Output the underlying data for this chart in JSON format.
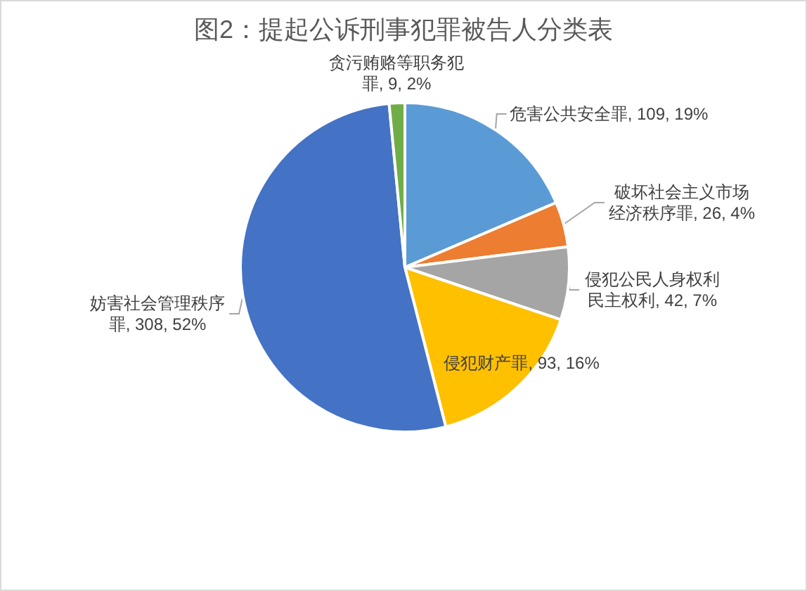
{
  "chart_data": {
    "type": "pie",
    "title": "图2：提起公诉刑事犯罪被告人分类表",
    "categories": [
      "危害公共安全罪",
      "破坏社会主义市场经济秩序罪",
      "侵犯公民人身权利民主权利",
      "侵犯财产罪",
      "妨害社会管理秩序罪",
      "贪污贿赂等职务犯罪"
    ],
    "values": [
      109,
      26,
      42,
      93,
      308,
      9
    ],
    "colors": [
      "#5b9bd5",
      "#ed7d31",
      "#a5a5a5",
      "#ffc000",
      "#4472c4",
      "#70ad47"
    ],
    "value_labels": [
      "109, 19%",
      "26, 4%",
      "42, 7%",
      "93, 16%",
      "308, 52%",
      "9, 2%"
    ]
  }
}
